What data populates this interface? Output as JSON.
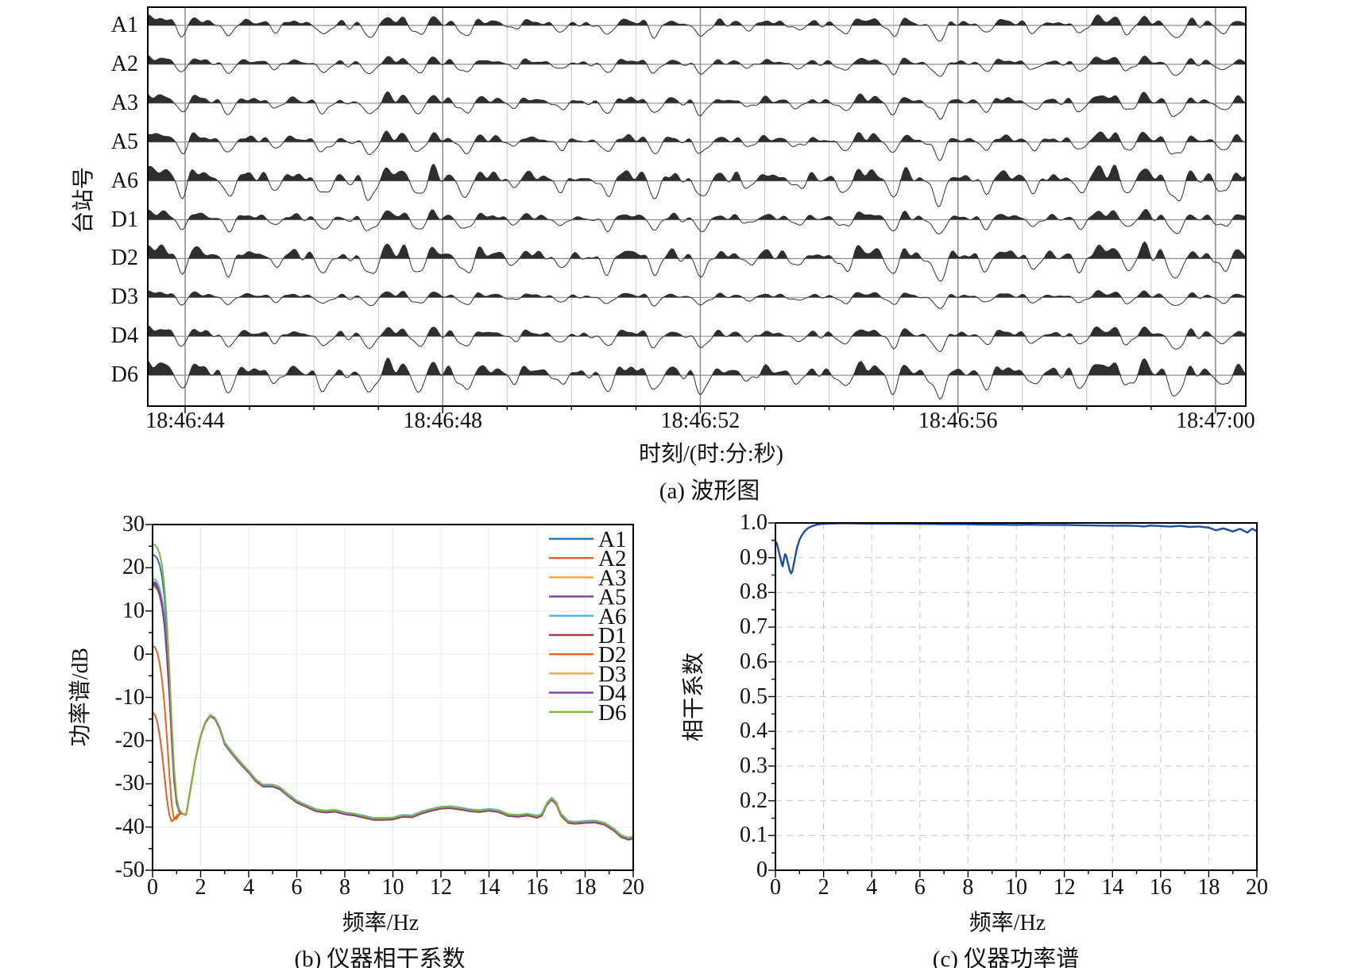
{
  "chart_data": [
    {
      "id": "a",
      "type": "waveform",
      "title": "(a) 波形图",
      "xlabel": "时刻/(时:分:秒)",
      "ylabel": "台站号",
      "stations": [
        "A1",
        "A2",
        "A3",
        "A5",
        "A6",
        "D1",
        "D2",
        "D3",
        "D4",
        "D6"
      ],
      "x_tick_labels": [
        "18:46:44",
        "18:46:48",
        "18:46:52",
        "18:46:56",
        "18:47:00"
      ],
      "x_major_interval_s": 4,
      "x_minor_interval_s": 1,
      "time_before_first_tick_s": 0.58,
      "time_span_s": 17.05,
      "relative_amplitudes": [
        1.0,
        0.82,
        1.0,
        1.05,
        1.55,
        1.0,
        1.5,
        0.68,
        1.0,
        1.55
      ],
      "waveform_color": "#2e2e2e",
      "baseline_color": "#8f8f8f",
      "grid_major_color": "#8a8a8a",
      "grid_minor_color": "#c6c6c6"
    },
    {
      "id": "b",
      "type": "line",
      "title": "(b) 仪器相干系数",
      "xlabel": "频率/Hz",
      "ylabel": "功率谱/dB",
      "xlim": [
        0,
        20
      ],
      "ylim": [
        -50,
        30
      ],
      "x_tick_labels": [
        "0",
        "2",
        "4",
        "6",
        "8",
        "10",
        "12",
        "14",
        "16",
        "18",
        "20"
      ],
      "y_tick_labels": [
        "30",
        "20",
        "10",
        "0",
        "-10",
        "-20",
        "-30",
        "-40",
        "-50"
      ],
      "x_minor_step": 1,
      "y_minor_step": 5,
      "grid": "solid-light",
      "legend_position": "upper-right",
      "head_x": [
        0,
        0.1,
        0.2,
        0.3,
        0.4,
        0.5,
        0.6,
        0.7,
        0.8,
        0.9,
        1.0,
        1.1,
        1.2,
        1.3,
        1.4
      ],
      "tail_x": [
        1.6,
        1.8,
        2.0,
        2.2,
        2.4,
        2.6,
        2.8,
        3.0,
        3.3,
        3.6,
        4.0,
        4.3,
        4.6,
        5.0,
        5.3,
        5.6,
        6.0,
        6.4,
        6.8,
        7.2,
        7.6,
        8.0,
        8.4,
        8.8,
        9.2,
        9.6,
        10.0,
        10.4,
        10.8,
        11.2,
        11.6,
        12.0,
        12.4,
        12.8,
        13.2,
        13.6,
        14.0,
        14.4,
        14.8,
        15.2,
        15.6,
        16.0,
        16.2,
        16.4,
        16.6,
        16.8,
        17.0,
        17.3,
        17.6,
        18.0,
        18.4,
        18.8,
        19.2,
        19.5,
        19.8,
        20.0
      ],
      "tail_values": [
        -30.5,
        -24,
        -19,
        -15.8,
        -14.3,
        -15,
        -17.3,
        -20.8,
        -23,
        -25,
        -27.4,
        -29.4,
        -30.6,
        -30.6,
        -31.2,
        -32.6,
        -34.3,
        -35.3,
        -36.3,
        -36.6,
        -36.4,
        -37,
        -37.3,
        -37.8,
        -38.3,
        -38.3,
        -38.2,
        -37.6,
        -37.7,
        -36.8,
        -36.2,
        -35.7,
        -35.6,
        -35.9,
        -36.3,
        -36.5,
        -36.2,
        -36.5,
        -37.4,
        -37.6,
        -37.3,
        -37.8,
        -37.3,
        -34.9,
        -33.6,
        -34.7,
        -37.4,
        -39,
        -39.2,
        -39,
        -38.9,
        -39.4,
        -40.8,
        -42.3,
        -42.9,
        -42.6
      ],
      "series": [
        {
          "name": "A1",
          "color": "#2878b5",
          "tail_offset": 0,
          "head_values": [
            23,
            22.8,
            22.1,
            20.6,
            17.8,
            13,
            5,
            -6,
            -18,
            -28,
            -33.8,
            -36,
            -36.8,
            -37,
            -37.2
          ]
        },
        {
          "name": "A2",
          "color": "#d95f2e",
          "tail_offset": 0.06,
          "head_values": [
            -13.5,
            -14,
            -15.8,
            -18.9,
            -23.2,
            -28.4,
            -33.6,
            -37.3,
            -38.7,
            -38.3,
            -37.4,
            -36.9,
            -36.9,
            -37,
            -37.2
          ]
        },
        {
          "name": "A3",
          "color": "#f3a52f",
          "tail_offset": 0.12,
          "head_values": [
            16,
            15.8,
            15.1,
            13.6,
            11,
            6.5,
            -0.5,
            -9.5,
            -20,
            -29.3,
            -34.4,
            -36.3,
            -36.9,
            -37,
            -37.2
          ]
        },
        {
          "name": "A5",
          "color": "#7d3a96",
          "tail_offset": 0.05,
          "head_values": [
            16.8,
            16.6,
            15.9,
            14.4,
            11.9,
            7.4,
            0.4,
            -8.8,
            -19.4,
            -28.9,
            -34.2,
            -36.2,
            -36.9,
            -37,
            -37.2
          ]
        },
        {
          "name": "A6",
          "color": "#4fb3e8",
          "tail_offset": 0.42,
          "head_values": [
            17.5,
            17.3,
            16.6,
            15.1,
            12.6,
            8.2,
            1.2,
            -8,
            -18.8,
            -28.5,
            -34,
            -36.1,
            -36.8,
            -37,
            -37.2
          ]
        },
        {
          "name": "D1",
          "color": "#b13a41",
          "tail_offset": -0.06,
          "head_values": [
            16.4,
            16.2,
            15.5,
            14,
            11.4,
            6.9,
            -0.1,
            -9.2,
            -19.7,
            -29.1,
            -34.3,
            -36.3,
            -36.9,
            -37,
            -37.2
          ]
        },
        {
          "name": "D2",
          "color": "#e8641f",
          "tail_offset": 0.1,
          "head_values": [
            2,
            1.6,
            0.3,
            -2.2,
            -6.2,
            -11.8,
            -19.2,
            -27.8,
            -35,
            -38.2,
            -38.1,
            -37.2,
            -36.9,
            -37,
            -37.2
          ]
        },
        {
          "name": "D3",
          "color": "#f2a63a",
          "tail_offset": 0.16,
          "head_values": [
            15.7,
            15.5,
            14.8,
            13.3,
            10.7,
            6.2,
            -0.8,
            -9.8,
            -20.3,
            -29.5,
            -34.5,
            -36.4,
            -36.9,
            -37,
            -37.2
          ]
        },
        {
          "name": "D4",
          "color": "#7f3f9f",
          "tail_offset": 0.08,
          "head_values": [
            16.1,
            15.9,
            15.2,
            13.7,
            11.1,
            6.6,
            -0.4,
            -9.4,
            -19.9,
            -29.3,
            -34.4,
            -36.3,
            -36.9,
            -37,
            -37.2
          ]
        },
        {
          "name": "D6",
          "color": "#86b440",
          "tail_offset": 0.3,
          "head_values": [
            25.5,
            25.3,
            24.6,
            23.1,
            20.3,
            15.4,
            7.4,
            -3.5,
            -15.8,
            -26.6,
            -33.2,
            -35.8,
            -36.7,
            -37,
            -37.2
          ]
        }
      ]
    },
    {
      "id": "c",
      "type": "line",
      "title": "(c) 仪器功率谱",
      "xlabel": "频率/Hz",
      "ylabel": "相干系数",
      "xlim": [
        0,
        20
      ],
      "ylim": [
        0,
        1.0
      ],
      "x_tick_labels": [
        "0",
        "2",
        "4",
        "6",
        "8",
        "10",
        "12",
        "14",
        "16",
        "18",
        "20"
      ],
      "y_tick_labels": [
        "1.0",
        "0.9",
        "0.8",
        "0.7",
        "0.6",
        "0.5",
        "0.4",
        "0.3",
        "0.2",
        "0.1",
        "0"
      ],
      "x_minor_step": 1,
      "y_minor_step": 0.05,
      "grid": "dashed",
      "color": "#1d4fa0",
      "x": [
        0,
        0.05,
        0.1,
        0.15,
        0.2,
        0.25,
        0.3,
        0.35,
        0.4,
        0.45,
        0.5,
        0.55,
        0.6,
        0.65,
        0.7,
        0.8,
        0.9,
        1.0,
        1.1,
        1.2,
        1.35,
        1.5,
        1.7,
        1.9,
        2.1,
        2.4,
        2.7,
        3.0,
        3.5,
        4.0,
        4.5,
        5.0,
        5.5,
        6.0,
        6.5,
        7.0,
        7.5,
        8.0,
        8.5,
        9.0,
        9.5,
        10.0,
        10.5,
        11.0,
        11.5,
        12.0,
        12.5,
        13.0,
        13.5,
        14.0,
        14.5,
        15.0,
        15.3,
        15.6,
        16.0,
        16.4,
        16.8,
        17.2,
        17.6,
        18.0,
        18.3,
        18.6,
        19.0,
        19.3,
        19.6,
        19.8,
        20.0
      ],
      "values": [
        0.945,
        0.943,
        0.93,
        0.915,
        0.9,
        0.885,
        0.875,
        0.895,
        0.91,
        0.905,
        0.89,
        0.875,
        0.862,
        0.855,
        0.86,
        0.895,
        0.93,
        0.952,
        0.965,
        0.975,
        0.985,
        0.99,
        0.995,
        0.997,
        0.998,
        0.9985,
        0.999,
        0.999,
        0.9985,
        0.998,
        0.998,
        0.9975,
        0.9975,
        0.997,
        0.997,
        0.9965,
        0.9965,
        0.996,
        0.9955,
        0.995,
        0.995,
        0.9945,
        0.995,
        0.9945,
        0.994,
        0.9945,
        0.9935,
        0.993,
        0.9925,
        0.992,
        0.9925,
        0.9915,
        0.99,
        0.9925,
        0.991,
        0.9895,
        0.9915,
        0.9885,
        0.99,
        0.9865,
        0.979,
        0.9845,
        0.9755,
        0.983,
        0.972,
        0.9835,
        0.976
      ]
    }
  ]
}
